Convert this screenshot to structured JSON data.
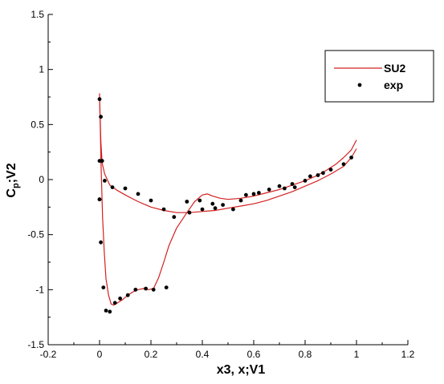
{
  "chart_data": {
    "type": "line",
    "title": "",
    "xlabel": "x3, x;V1",
    "ylabel_main": "C",
    "ylabel_sub": "p",
    "ylabel_rest": ";V2",
    "xlim": [
      -0.2,
      1.2
    ],
    "ylim": [
      1.5,
      -1.5
    ],
    "y_inverted": true,
    "x_ticks": [
      "-0.2",
      "0",
      "0.2",
      "0.4",
      "0.6",
      "0.8",
      "1",
      "1.2"
    ],
    "x_tick_values": [
      -0.2,
      0,
      0.2,
      0.4,
      0.6,
      0.8,
      1,
      1.2
    ],
    "y_ticks": [
      "-1.5",
      "-1",
      "-0.5",
      "0",
      "0.5",
      "1",
      "1.5"
    ],
    "y_tick_values": [
      -1.5,
      -1,
      -0.5,
      0,
      0.5,
      1,
      1.5
    ],
    "grid": false,
    "legend_position": "top-right",
    "series": [
      {
        "name": "SU2",
        "style": "line",
        "color": "#d42020",
        "x": [
          1.0,
          0.98,
          0.95,
          0.92,
          0.88,
          0.84,
          0.8,
          0.75,
          0.7,
          0.65,
          0.6,
          0.55,
          0.5,
          0.47,
          0.44,
          0.42,
          0.4,
          0.37,
          0.34,
          0.3,
          0.27,
          0.25,
          0.23,
          0.21,
          0.19,
          0.17,
          0.15,
          0.13,
          0.11,
          0.09,
          0.07,
          0.055,
          0.045,
          0.035,
          0.025,
          0.018,
          0.012,
          0.008,
          0.005,
          0.003,
          0.001,
          0.0,
          0.0,
          0.002,
          0.005,
          0.01,
          0.02,
          0.04,
          0.07,
          0.1,
          0.15,
          0.2,
          0.25,
          0.3,
          0.35,
          0.4,
          0.45,
          0.5,
          0.55,
          0.6,
          0.65,
          0.7,
          0.75,
          0.8,
          0.85,
          0.9,
          0.95,
          0.98,
          1.0
        ],
        "y": [
          0.36,
          0.27,
          0.2,
          0.14,
          0.08,
          0.03,
          -0.01,
          -0.05,
          -0.09,
          -0.12,
          -0.15,
          -0.17,
          -0.18,
          -0.17,
          -0.15,
          -0.13,
          -0.14,
          -0.2,
          -0.3,
          -0.44,
          -0.6,
          -0.75,
          -0.89,
          -0.99,
          -1.0,
          -0.99,
          -1.0,
          -1.02,
          -1.05,
          -1.09,
          -1.12,
          -1.14,
          -1.13,
          -1.05,
          -0.9,
          -0.65,
          -0.35,
          -0.05,
          0.2,
          0.45,
          0.65,
          0.78,
          0.78,
          0.6,
          0.35,
          0.15,
          0.05,
          -0.05,
          -0.1,
          -0.14,
          -0.2,
          -0.25,
          -0.28,
          -0.3,
          -0.3,
          -0.29,
          -0.28,
          -0.26,
          -0.24,
          -0.22,
          -0.19,
          -0.15,
          -0.11,
          -0.06,
          -0.01,
          0.05,
          0.12,
          0.2,
          0.28
        ]
      },
      {
        "name": "exp",
        "style": "scatter",
        "color": "#000000",
        "x": [
          0.0,
          0.005,
          0.015,
          0.025,
          0.04,
          0.06,
          0.08,
          0.11,
          0.14,
          0.18,
          0.21,
          0.26,
          0.0,
          0.005,
          0.01,
          0.02,
          0.05,
          0.1,
          0.15,
          0.2,
          0.25,
          0.29,
          0.35,
          0.4,
          0.45,
          0.48,
          0.55,
          0.6,
          0.66,
          0.7,
          0.75,
          0.8,
          0.85,
          0.9,
          0.95,
          0.98,
          0.34,
          0.39,
          0.44,
          0.52,
          0.57,
          0.62,
          0.72,
          0.76,
          0.82,
          0.87,
          0.0,
          0.0
        ],
        "y": [
          -0.18,
          -0.57,
          -0.98,
          -1.19,
          -1.2,
          -1.12,
          -1.08,
          -1.05,
          -1.0,
          -0.99,
          -1.0,
          -0.98,
          0.73,
          0.57,
          0.17,
          -0.01,
          -0.07,
          -0.08,
          -0.13,
          -0.19,
          -0.27,
          -0.34,
          -0.3,
          -0.27,
          -0.26,
          -0.23,
          -0.19,
          -0.13,
          -0.09,
          -0.06,
          -0.04,
          -0.01,
          0.04,
          0.09,
          0.14,
          0.2,
          -0.2,
          -0.19,
          -0.22,
          -0.27,
          -0.14,
          -0.12,
          -0.08,
          -0.07,
          0.03,
          0.06,
          0.17,
          -0.18
        ]
      }
    ]
  }
}
